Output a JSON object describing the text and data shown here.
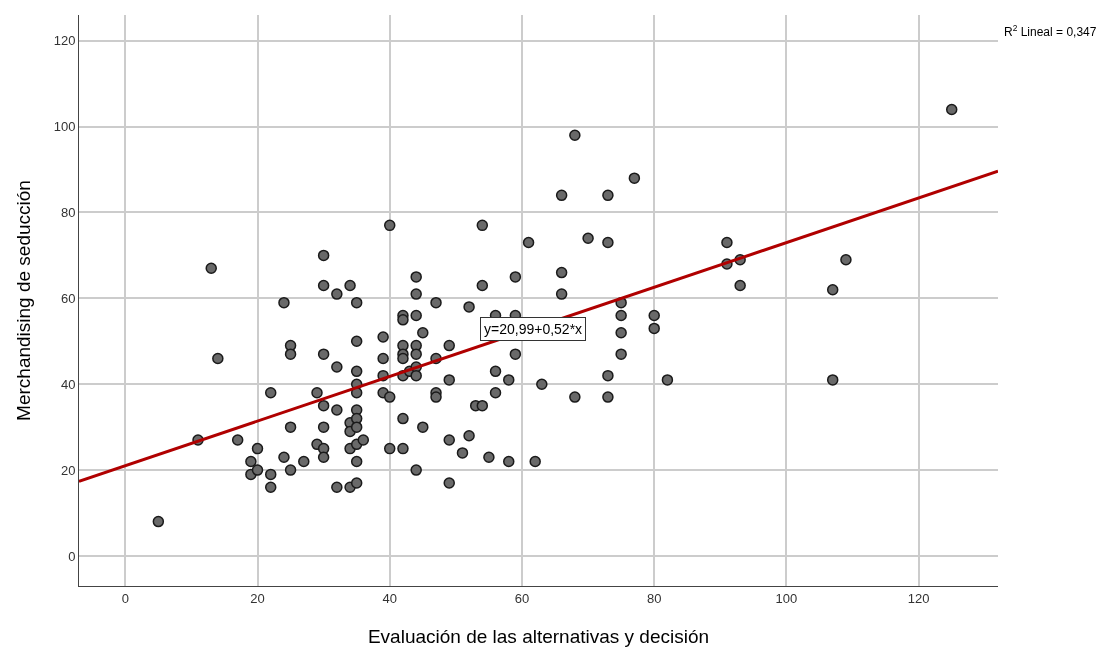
{
  "chart_data": {
    "type": "scatter",
    "xlabel": "Evaluación de las alternativas y decisión",
    "ylabel": "Merchandising de seducción",
    "xlim": [
      -7,
      132
    ],
    "xticks": [
      0,
      20,
      40,
      60,
      80,
      100,
      120
    ],
    "ylim": [
      -7,
      126
    ],
    "yticks": [
      0,
      20,
      40,
      60,
      80,
      100,
      120
    ],
    "grid": true,
    "annotations": [
      "R$^{2}$ Lineal = 0,347",
      "y=20,99+0,52*x"
    ],
    "series": [
      {
        "type": "scatter",
        "marker": "circle",
        "color": "#696969",
        "x": [
          5,
          11,
          13,
          14,
          17,
          19,
          19,
          20,
          20,
          22,
          22,
          22,
          24,
          24,
          25,
          25,
          25,
          25,
          27,
          29,
          29,
          30,
          30,
          30,
          30,
          30,
          30,
          30,
          32,
          32,
          32,
          32,
          34,
          34,
          34,
          34,
          34,
          35,
          35,
          35,
          35,
          35,
          35,
          35,
          35,
          35,
          35,
          35,
          36,
          39,
          39,
          39,
          39,
          40,
          40,
          40,
          42,
          42,
          42,
          42,
          42,
          42,
          42,
          42,
          43,
          44,
          44,
          44,
          44,
          44,
          44,
          44,
          44,
          45,
          45,
          47,
          47,
          47,
          47,
          49,
          49,
          49,
          49,
          51,
          52,
          52,
          53,
          54,
          54,
          54,
          55,
          56,
          56,
          56,
          58,
          58,
          59,
          59,
          59,
          61,
          62,
          63,
          66,
          66,
          66,
          68,
          68,
          70,
          73,
          73,
          73,
          73,
          75,
          75,
          75,
          75,
          77,
          80,
          80,
          82,
          91,
          91,
          93,
          93,
          107,
          107,
          109,
          125
        ],
        "values": [
          8,
          27,
          67,
          46,
          27,
          22,
          19,
          20,
          25,
          38,
          19,
          16,
          59,
          23,
          49,
          47,
          30,
          20,
          22,
          38,
          26,
          70,
          63,
          47,
          35,
          30,
          25,
          23,
          61,
          44,
          34,
          16,
          63,
          31,
          29,
          25,
          16,
          59,
          50,
          43,
          40,
          38,
          34,
          32,
          30,
          26,
          22,
          17,
          27,
          51,
          46,
          42,
          38,
          77,
          37,
          25,
          56,
          55,
          49,
          47,
          46,
          42,
          32,
          25,
          43,
          65,
          61,
          56,
          49,
          47,
          44,
          42,
          20,
          52,
          30,
          59,
          46,
          38,
          37,
          49,
          41,
          27,
          17,
          24,
          58,
          28,
          35,
          77,
          63,
          35,
          23,
          56,
          43,
          38,
          41,
          22,
          65,
          56,
          47,
          73,
          22,
          40,
          84,
          66,
          61,
          98,
          37,
          74,
          84,
          73,
          42,
          37,
          59,
          56,
          52,
          47,
          88,
          56,
          53,
          41,
          73,
          68,
          69,
          63,
          62,
          41,
          69,
          104
        ]
      },
      {
        "type": "line",
        "marker": "none",
        "color": "#b00000",
        "line_style": "solid",
        "x": [
          -7,
          132
        ],
        "values": [
          17.4,
          89.6
        ]
      }
    ]
  }
}
